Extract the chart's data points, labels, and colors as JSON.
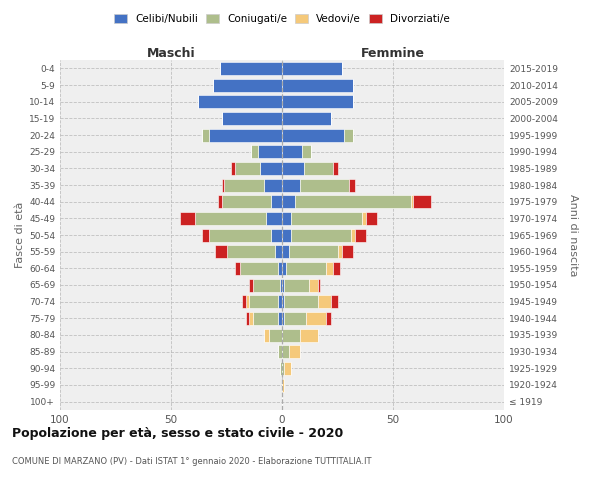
{
  "age_groups": [
    "100+",
    "95-99",
    "90-94",
    "85-89",
    "80-84",
    "75-79",
    "70-74",
    "65-69",
    "60-64",
    "55-59",
    "50-54",
    "45-49",
    "40-44",
    "35-39",
    "30-34",
    "25-29",
    "20-24",
    "15-19",
    "10-14",
    "5-9",
    "0-4"
  ],
  "birth_years": [
    "≤ 1919",
    "1920-1924",
    "1925-1929",
    "1930-1934",
    "1935-1939",
    "1940-1944",
    "1945-1949",
    "1950-1954",
    "1955-1959",
    "1960-1964",
    "1965-1969",
    "1970-1974",
    "1975-1979",
    "1980-1984",
    "1985-1989",
    "1990-1994",
    "1995-1999",
    "2000-2004",
    "2005-2009",
    "2010-2014",
    "2015-2019"
  ],
  "colors": {
    "celibi": "#4472C4",
    "coniugati": "#AEBE8C",
    "vedovi": "#F5C97A",
    "divorziati": "#CC2222"
  },
  "males": {
    "celibi": [
      0,
      0,
      0,
      0,
      0,
      2,
      2,
      1,
      2,
      3,
      5,
      7,
      5,
      8,
      10,
      11,
      33,
      27,
      38,
      31,
      28
    ],
    "coniugati": [
      0,
      0,
      1,
      2,
      6,
      11,
      13,
      12,
      17,
      22,
      28,
      32,
      22,
      18,
      11,
      3,
      3,
      0,
      0,
      0,
      0
    ],
    "vedovi": [
      0,
      0,
      0,
      0,
      2,
      2,
      1,
      0,
      0,
      0,
      0,
      0,
      0,
      0,
      0,
      0,
      0,
      0,
      0,
      0,
      0
    ],
    "divorziati": [
      0,
      0,
      0,
      0,
      0,
      1,
      2,
      2,
      2,
      5,
      3,
      7,
      2,
      1,
      2,
      0,
      0,
      0,
      0,
      0,
      0
    ]
  },
  "females": {
    "nubili": [
      0,
      0,
      0,
      0,
      0,
      1,
      1,
      1,
      2,
      3,
      4,
      4,
      6,
      8,
      10,
      9,
      28,
      22,
      32,
      32,
      27
    ],
    "coniugate": [
      0,
      0,
      1,
      3,
      8,
      10,
      15,
      11,
      18,
      22,
      27,
      32,
      52,
      22,
      13,
      4,
      4,
      0,
      0,
      0,
      0
    ],
    "vedove": [
      0,
      1,
      3,
      5,
      8,
      9,
      6,
      4,
      3,
      2,
      2,
      2,
      1,
      0,
      0,
      0,
      0,
      0,
      0,
      0,
      0
    ],
    "divorziate": [
      0,
      0,
      0,
      0,
      0,
      2,
      3,
      1,
      3,
      5,
      5,
      5,
      8,
      3,
      2,
      0,
      0,
      0,
      0,
      0,
      0
    ]
  },
  "xlim": 100,
  "title": "Popolazione per età, sesso e stato civile - 2020",
  "subtitle": "COMUNE DI MARZANO (PV) - Dati ISTAT 1° gennaio 2020 - Elaborazione TUTTITALIA.IT",
  "ylabel_left": "Fasce di età",
  "ylabel_right": "Anni di nascita",
  "label_maschi": "Maschi",
  "label_femmine": "Femmine",
  "legend_labels": [
    "Celibi/Nubili",
    "Coniugati/e",
    "Vedovi/e",
    "Divorziati/e"
  ],
  "bg_color": "#FFFFFF",
  "plot_bg": "#EFEFEF"
}
